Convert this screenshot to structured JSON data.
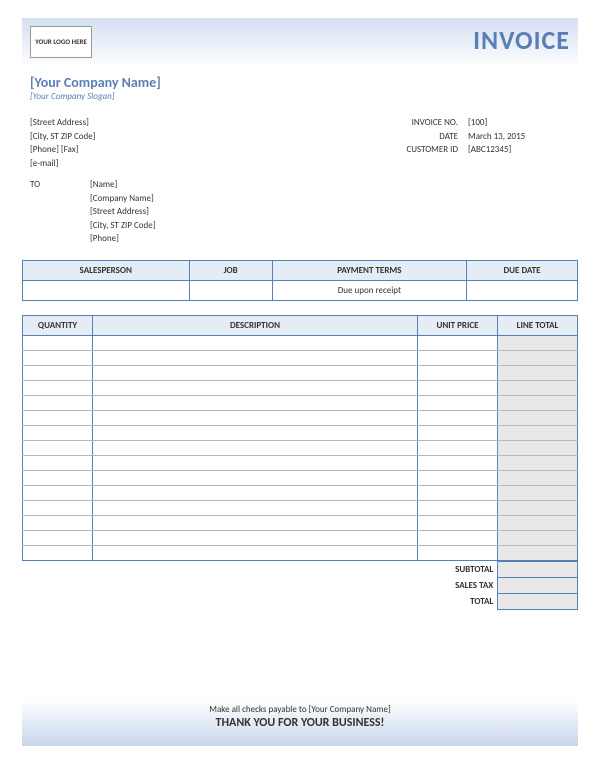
{
  "header": {
    "logo_text": "YOUR LOGO HERE",
    "title": "INVOICE"
  },
  "company": {
    "name": "[Your Company Name]",
    "slogan": "[Your Company Slogan]"
  },
  "from": {
    "street": "[Street Address]",
    "city": "[City, ST  ZIP Code]",
    "phone_fax": "[Phone]  [Fax]",
    "email": "[e-mail]"
  },
  "meta": {
    "invoice_no_label": "INVOICE NO.",
    "invoice_no": "[100]",
    "date_label": "DATE",
    "date": "March 13, 2015",
    "customer_id_label": "CUSTOMER ID",
    "customer_id": "[ABC12345]"
  },
  "to": {
    "label": "TO",
    "name": "[Name]",
    "company": "[Company Name]",
    "street": "[Street Address]",
    "city": "[City, ST  ZIP Code]",
    "phone": "[Phone]"
  },
  "order_meta": {
    "columns": [
      "SALESPERSON",
      "JOB",
      "PAYMENT TERMS",
      "DUE DATE"
    ],
    "values": [
      "",
      "",
      "Due upon receipt",
      ""
    ]
  },
  "items": {
    "columns": [
      "QUANTITY",
      "DESCRIPTION",
      "UNIT PRICE",
      "LINE TOTAL"
    ],
    "row_count": 15
  },
  "totals": {
    "subtotal_label": "SUBTOTAL",
    "subtotal": "",
    "tax_label": "SALES TAX",
    "tax": "",
    "total_label": "TOTAL",
    "total": ""
  },
  "footer": {
    "line1": "Make all checks payable to [Your Company Name]",
    "line2": "THANK YOU FOR YOUR BUSINESS!"
  },
  "colors": {
    "accent": "#5a7fb5",
    "header_bg": "#e4ecf6",
    "shaded": "#e8e8e8",
    "grid_light": "#aeb9d1"
  }
}
